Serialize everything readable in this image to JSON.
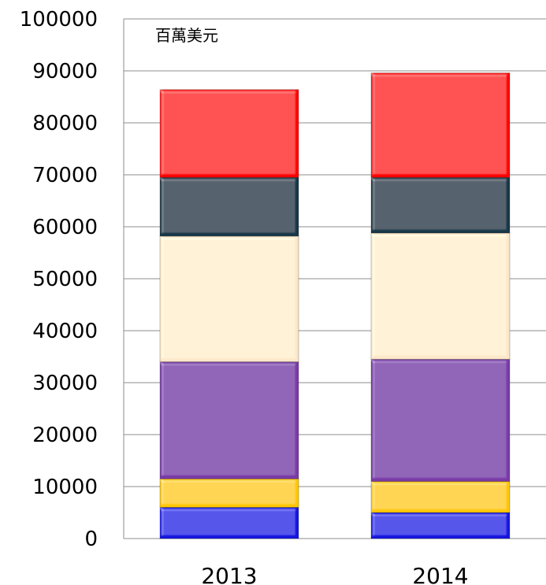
{
  "chart_data": {
    "type": "bar",
    "stacked": true,
    "unit_label": "百萬美元",
    "categories": [
      "2013",
      "2014"
    ],
    "ylim": [
      0,
      100000
    ],
    "yticks": [
      0,
      10000,
      20000,
      30000,
      40000,
      50000,
      60000,
      70000,
      80000,
      90000,
      100000
    ],
    "grid": true,
    "legend": "none",
    "series": [
      {
        "color": "#1414e0",
        "values": [
          6000,
          5000
        ]
      },
      {
        "color": "#ffc800",
        "values": [
          5500,
          6000
        ]
      },
      {
        "color": "#7a3aa8",
        "values": [
          22500,
          23500
        ]
      },
      {
        "color": "#fde7c9",
        "values": [
          24200,
          24300
        ]
      },
      {
        "color": "#14374a",
        "values": [
          11300,
          10700
        ]
      },
      {
        "color": "#ff0000",
        "values": [
          16900,
          20100
        ]
      }
    ]
  }
}
